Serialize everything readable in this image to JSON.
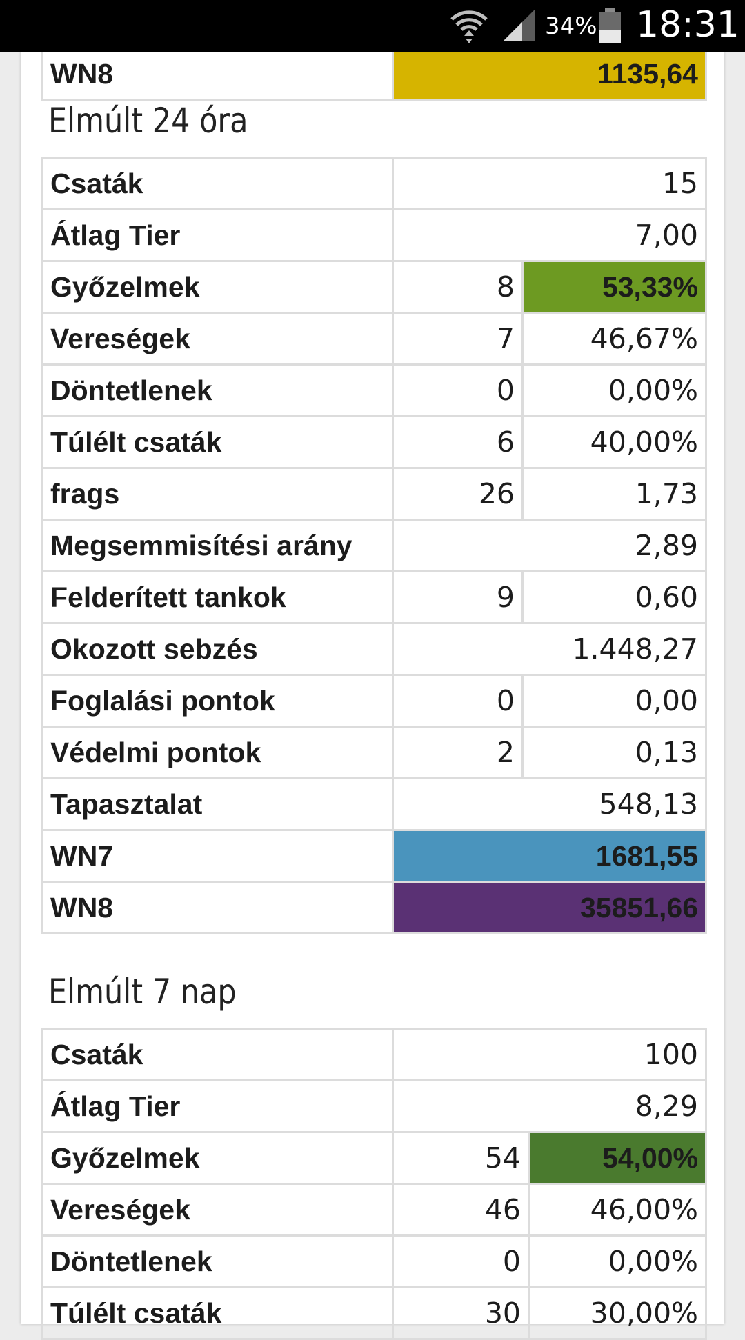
{
  "status_bar": {
    "battery_percent": "34%",
    "time": "18:31",
    "icons": [
      "wifi-icon",
      "signal-icon",
      "battery-icon"
    ]
  },
  "top_row": {
    "label": "WN8",
    "value": "1135,64",
    "color": "#d6b400"
  },
  "section_24h": {
    "title": "Elmúlt 24 óra",
    "rows": [
      {
        "label": "Csaták",
        "value": "15"
      },
      {
        "label": "Átlag Tier",
        "value": "7,00"
      },
      {
        "label": "Győzelmek",
        "count": "8",
        "percent": "53,33%",
        "percent_color": "#6d9a22"
      },
      {
        "label": "Vereségek",
        "count": "7",
        "percent": "46,67%"
      },
      {
        "label": "Döntetlenek",
        "count": "0",
        "percent": "0,00%"
      },
      {
        "label": "Túlélt csaták",
        "count": "6",
        "percent": "40,00%"
      },
      {
        "label": "frags",
        "count": "26",
        "percent": "1,73"
      },
      {
        "label": "Megsemmisítési arány",
        "value": "2,89"
      },
      {
        "label": "Felderített tankok",
        "count": "9",
        "percent": "0,60"
      },
      {
        "label": "Okozott sebzés",
        "value": "1.448,27"
      },
      {
        "label": "Foglalási pontok",
        "count": "0",
        "percent": "0,00"
      },
      {
        "label": "Védelmi pontok",
        "count": "2",
        "percent": "0,13"
      },
      {
        "label": "Tapasztalat",
        "value": "548,13"
      },
      {
        "label": "WN7",
        "value": "1681,55",
        "color": "#4a94bd"
      },
      {
        "label": "WN8",
        "value": "35851,66",
        "color": "#5a3174"
      }
    ]
  },
  "section_7d": {
    "title": "Elmúlt 7 nap",
    "rows": [
      {
        "label": "Csaták",
        "value": "100"
      },
      {
        "label": "Átlag Tier",
        "value": "8,29"
      },
      {
        "label": "Győzelmek",
        "count": "54",
        "percent": "54,00%",
        "percent_color": "#4a7a2e"
      },
      {
        "label": "Vereségek",
        "count": "46",
        "percent": "46,00%"
      },
      {
        "label": "Döntetlenek",
        "count": "0",
        "percent": "0,00%"
      },
      {
        "label": "Túlélt csaták",
        "count": "30",
        "percent": "30,00%"
      }
    ]
  }
}
